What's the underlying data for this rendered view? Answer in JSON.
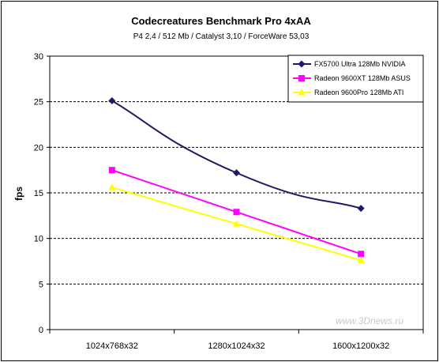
{
  "chart_data": {
    "type": "line",
    "title": "Codecreatures Benchmark Pro 4xAA",
    "subtitle": "P4 2,4 / 512 Mb / Catalyst 3,10 / ForceWare 53,03",
    "ylabel": "fps",
    "xlabel": "",
    "categories": [
      "1024x768x32",
      "1280x1024x32",
      "1600x1200x32"
    ],
    "ylim": [
      0,
      30
    ],
    "yticks": [
      0,
      5,
      10,
      15,
      20,
      25,
      30
    ],
    "grid": true,
    "legend_position": "top-right",
    "series": [
      {
        "name": "FX5700 Ultra 128Mb NVIDIA",
        "values": [
          25.1,
          17.2,
          13.3
        ],
        "color": "#1a1a66",
        "marker": "diamond",
        "smooth": true
      },
      {
        "name": "Radeon 9600XT 128Mb ASUS",
        "values": [
          17.5,
          12.9,
          8.3
        ],
        "color": "#ff00ff",
        "marker": "square",
        "smooth": false
      },
      {
        "name": "Radeon 9600Pro 128Mb ATI",
        "values": [
          15.6,
          11.6,
          7.6
        ],
        "color": "#ffff00",
        "marker": "triangle",
        "smooth": false
      }
    ]
  },
  "watermark": "www.3Dnews.ru"
}
